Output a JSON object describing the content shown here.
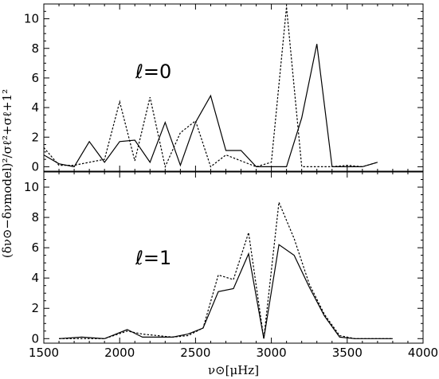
{
  "chart_data": {
    "type": "line",
    "xlabel": "ν⊙[μHz]",
    "ylabel": "(δν⊙−δνmodel)²/σℓ²+σℓ+1²",
    "xlim": [
      1500,
      4000
    ],
    "xticks": [
      1500,
      2000,
      2500,
      3000,
      3500,
      4000
    ],
    "panels": [
      {
        "label": "ℓ=0",
        "ylim": [
          -0.3,
          11.0
        ],
        "yticks": [
          0,
          2,
          4,
          6,
          8,
          10
        ],
        "series": [
          {
            "style": "solid",
            "x": [
              1500,
              1600,
              1700,
              1800,
              1900,
              2000,
              2100,
              2200,
              2300,
              2400,
              2500,
              2600,
              2700,
              2800,
              2900,
              3000,
              3100,
              3200,
              3300,
              3400,
              3500,
              3600,
              3700
            ],
            "values": [
              0.8,
              0.2,
              0.0,
              1.7,
              0.3,
              1.7,
              1.8,
              0.3,
              3.0,
              0.1,
              3.0,
              4.8,
              1.1,
              1.1,
              0.0,
              0.0,
              0.0,
              3.3,
              8.3,
              0.0,
              0.0,
              0.0,
              0.3
            ]
          },
          {
            "style": "dashed",
            "x": [
              1500,
              1600,
              1700,
              1800,
              1900,
              2000,
              2100,
              2200,
              2300,
              2400,
              2500,
              2600,
              2700,
              2800,
              2900,
              3000,
              3100,
              3200,
              3300,
              3400,
              3500,
              3600,
              3700
            ],
            "values": [
              1.3,
              0.1,
              0.1,
              0.3,
              0.5,
              4.4,
              0.4,
              4.7,
              0.0,
              2.3,
              3.1,
              0.0,
              0.8,
              0.4,
              0.0,
              0.3,
              10.8,
              0.0,
              0.0,
              0.0,
              0.1,
              0.0,
              0.3
            ]
          }
        ]
      },
      {
        "label": "ℓ=1",
        "ylim": [
          -0.3,
          11.0
        ],
        "yticks": [
          0,
          2,
          4,
          6,
          8,
          10
        ],
        "series": [
          {
            "style": "solid",
            "x": [
              1600,
              1750,
              1900,
              2050,
              2150,
              2250,
              2350,
              2450,
              2550,
              2650,
              2750,
              2850,
              2950,
              3050,
              3150,
              3250,
              3350,
              3450,
              3550,
              3650,
              3800
            ],
            "values": [
              0.0,
              0.1,
              0.0,
              0.6,
              0.1,
              0.1,
              0.1,
              0.3,
              0.7,
              3.1,
              3.3,
              5.6,
              0.0,
              6.2,
              5.5,
              3.4,
              1.5,
              0.1,
              0.0,
              0.0,
              0.0
            ],
            "note_points": []
          },
          {
            "style": "dashed",
            "x": [
              1600,
              1750,
              1900,
              2050,
              2150,
              2250,
              2350,
              2450,
              2550,
              2650,
              2750,
              2850,
              2950,
              3050,
              3150,
              3250,
              3350,
              3450,
              3550,
              3650,
              3800
            ],
            "values": [
              0.0,
              0.0,
              0.0,
              0.5,
              0.3,
              0.2,
              0.1,
              0.2,
              0.7,
              4.2,
              3.9,
              7.0,
              0.0,
              9.0,
              6.6,
              3.6,
              1.6,
              0.2,
              0.0,
              0.0,
              0.0
            ]
          }
        ]
      }
    ],
    "grid": false,
    "legend": "none"
  }
}
